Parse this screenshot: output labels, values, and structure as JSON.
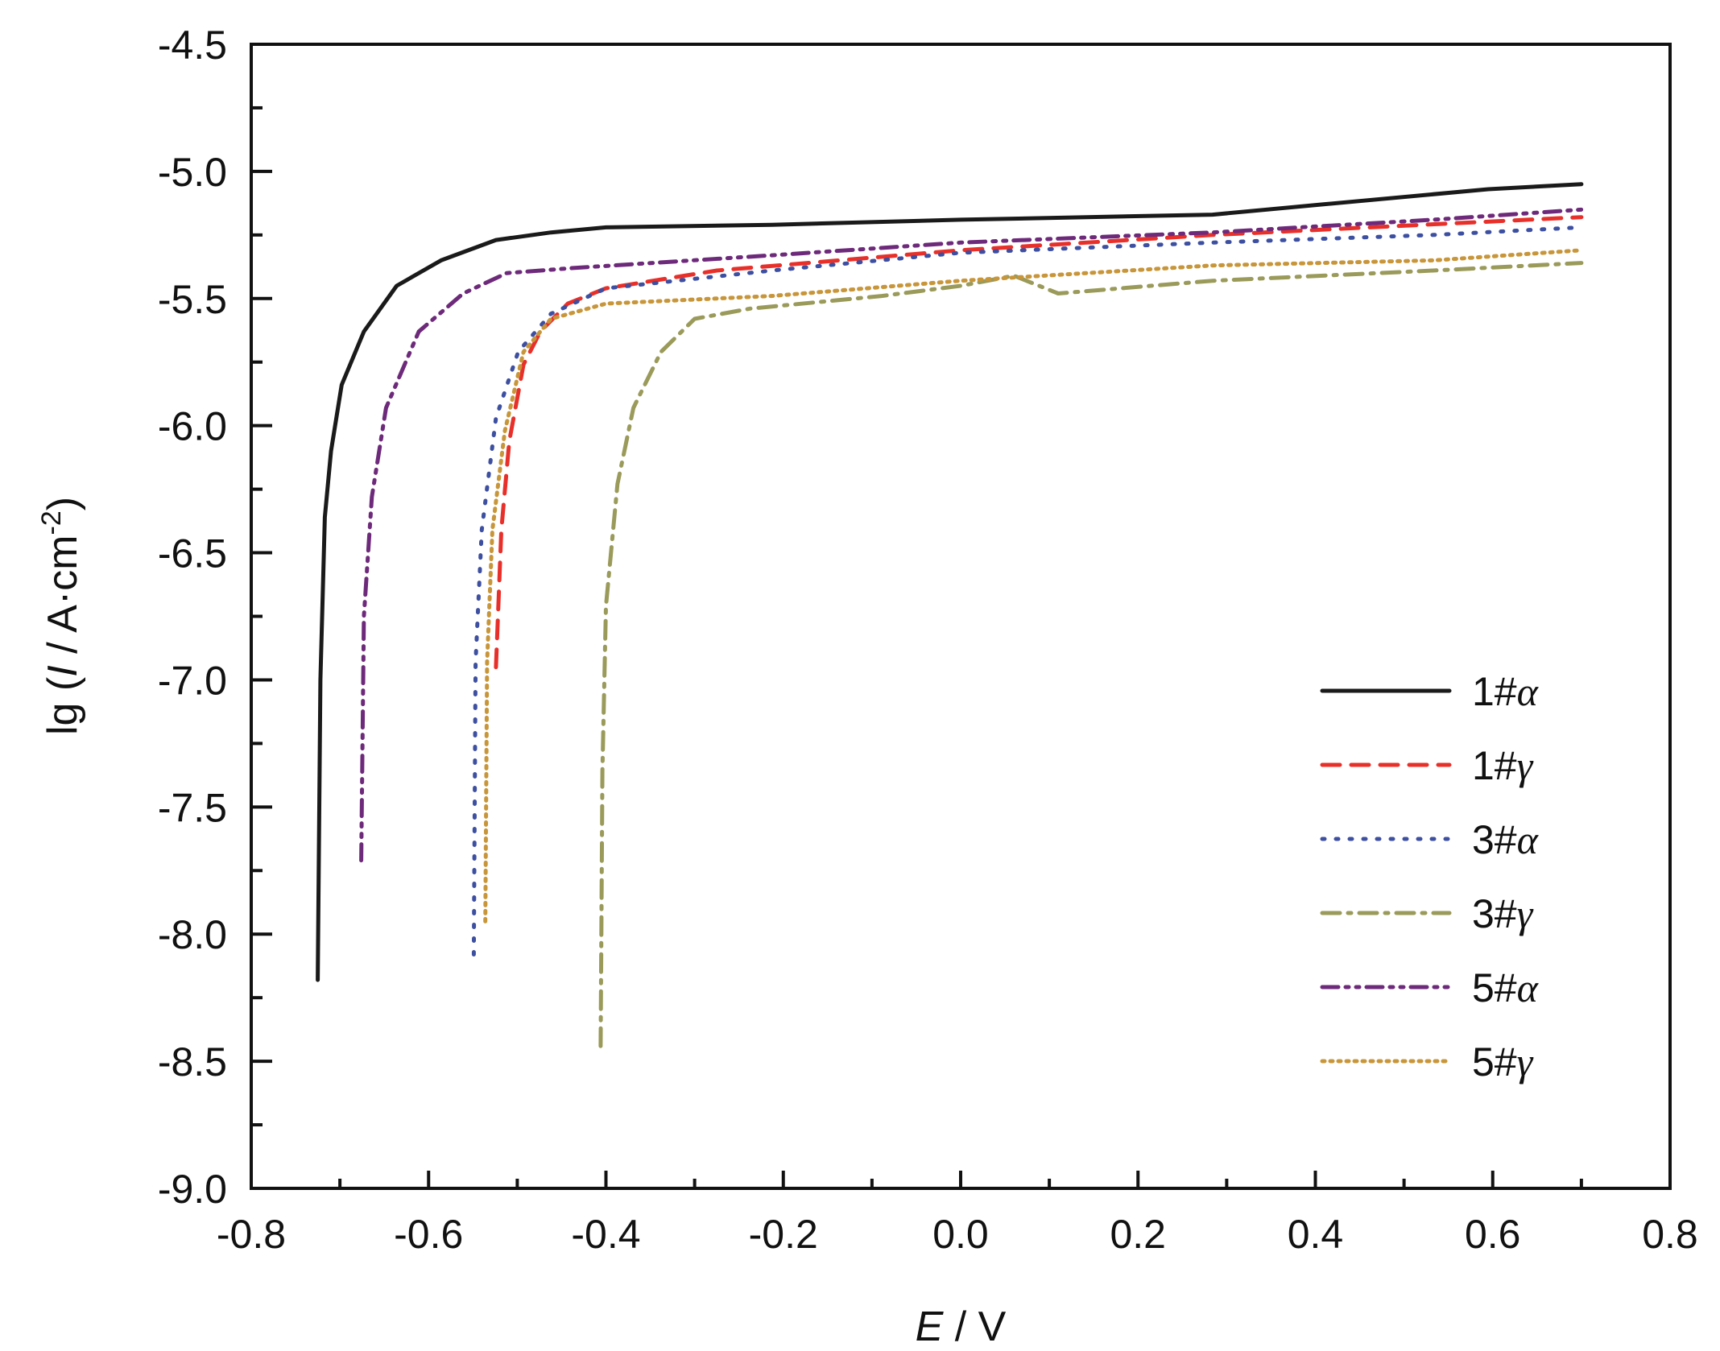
{
  "chart_data": {
    "type": "line",
    "title": "",
    "xlabel": {
      "italic": "E",
      "rest": " / V"
    },
    "ylabel": {
      "pre": "lg (",
      "italic": "I",
      "mid": " / A·cm",
      "sup": "-2",
      "post": ")"
    },
    "xlim": [
      -0.8,
      0.8
    ],
    "ylim": [
      -9.0,
      -4.5
    ],
    "xticks": [
      "-0.8",
      "-0.6",
      "-0.4",
      "-0.2",
      "0.0",
      "0.2",
      "0.4",
      "0.6",
      "0.8"
    ],
    "yticks": [
      "-4.5",
      "-5.0",
      "-5.5",
      "-6.0",
      "-6.5",
      "-7.0",
      "-7.5",
      "-8.0",
      "-8.5",
      "-9.0"
    ],
    "legend_position": "right",
    "series": [
      {
        "name": "1#",
        "greek": "α",
        "color": "#1a1a1a",
        "dash": "",
        "points": [
          [
            -0.725,
            -8.18
          ],
          [
            -0.722,
            -7.0
          ],
          [
            -0.717,
            -6.36
          ],
          [
            -0.71,
            -6.1
          ],
          [
            -0.698,
            -5.84
          ],
          [
            -0.673,
            -5.63
          ],
          [
            -0.636,
            -5.45
          ],
          [
            -0.586,
            -5.35
          ],
          [
            -0.524,
            -5.27
          ],
          [
            -0.462,
            -5.24
          ],
          [
            -0.4,
            -5.22
          ],
          [
            -0.213,
            -5.21
          ],
          [
            0.0,
            -5.19
          ],
          [
            0.284,
            -5.17
          ],
          [
            0.408,
            -5.13
          ],
          [
            0.595,
            -5.07
          ],
          [
            0.7,
            -5.05
          ]
        ]
      },
      {
        "name": "1#",
        "greek": "γ",
        "color": "#e8302a",
        "dash": "22 14",
        "points": [
          [
            -0.524,
            -6.95
          ],
          [
            -0.518,
            -6.41
          ],
          [
            -0.509,
            -6.06
          ],
          [
            -0.493,
            -5.76
          ],
          [
            -0.474,
            -5.63
          ],
          [
            -0.443,
            -5.52
          ],
          [
            -0.4,
            -5.46
          ],
          [
            -0.275,
            -5.39
          ],
          [
            0.0,
            -5.31
          ],
          [
            0.284,
            -5.25
          ],
          [
            0.7,
            -5.18
          ]
        ]
      },
      {
        "name": "3#",
        "greek": "α",
        "color": "#3d4fa0",
        "dash": "3 14",
        "points": [
          [
            -0.549,
            -8.08
          ],
          [
            -0.547,
            -6.93
          ],
          [
            -0.54,
            -6.41
          ],
          [
            -0.524,
            -5.97
          ],
          [
            -0.499,
            -5.71
          ],
          [
            -0.462,
            -5.56
          ],
          [
            -0.4,
            -5.46
          ],
          [
            -0.213,
            -5.39
          ],
          [
            0.0,
            -5.32
          ],
          [
            0.284,
            -5.28
          ],
          [
            0.533,
            -5.25
          ],
          [
            0.7,
            -5.22
          ]
        ]
      },
      {
        "name": "3#",
        "greek": "γ",
        "color": "#9a9a5a",
        "dash": "22 10 4 10",
        "points": [
          [
            -0.406,
            -8.44
          ],
          [
            -0.404,
            -7.36
          ],
          [
            -0.4,
            -6.71
          ],
          [
            -0.387,
            -6.23
          ],
          [
            -0.369,
            -5.93
          ],
          [
            -0.338,
            -5.71
          ],
          [
            -0.3,
            -5.58
          ],
          [
            -0.238,
            -5.54
          ],
          [
            -0.089,
            -5.49
          ],
          [
            0.0,
            -5.45
          ],
          [
            0.06,
            -5.41
          ],
          [
            0.11,
            -5.48
          ],
          [
            0.284,
            -5.43
          ],
          [
            0.533,
            -5.39
          ],
          [
            0.7,
            -5.36
          ]
        ]
      },
      {
        "name": "5#",
        "greek": "α",
        "color": "#6e2a7a",
        "dash": "20 9 4 9 4 9",
        "points": [
          [
            -0.676,
            -7.71
          ],
          [
            -0.673,
            -6.75
          ],
          [
            -0.664,
            -6.28
          ],
          [
            -0.648,
            -5.93
          ],
          [
            -0.611,
            -5.63
          ],
          [
            -0.561,
            -5.48
          ],
          [
            -0.512,
            -5.4
          ],
          [
            -0.437,
            -5.38
          ],
          [
            -0.213,
            -5.33
          ],
          [
            0.0,
            -5.28
          ],
          [
            0.284,
            -5.24
          ],
          [
            0.533,
            -5.19
          ],
          [
            0.7,
            -5.15
          ]
        ]
      },
      {
        "name": "5#",
        "greek": "γ",
        "color": "#c8963a",
        "dash": "3 7",
        "points": [
          [
            -0.536,
            -7.95
          ],
          [
            -0.534,
            -6.93
          ],
          [
            -0.528,
            -6.41
          ],
          [
            -0.514,
            -6.02
          ],
          [
            -0.493,
            -5.71
          ],
          [
            -0.462,
            -5.58
          ],
          [
            -0.4,
            -5.52
          ],
          [
            -0.213,
            -5.49
          ],
          [
            0.0,
            -5.43
          ],
          [
            0.284,
            -5.37
          ],
          [
            0.533,
            -5.35
          ],
          [
            0.7,
            -5.31
          ]
        ]
      }
    ]
  }
}
